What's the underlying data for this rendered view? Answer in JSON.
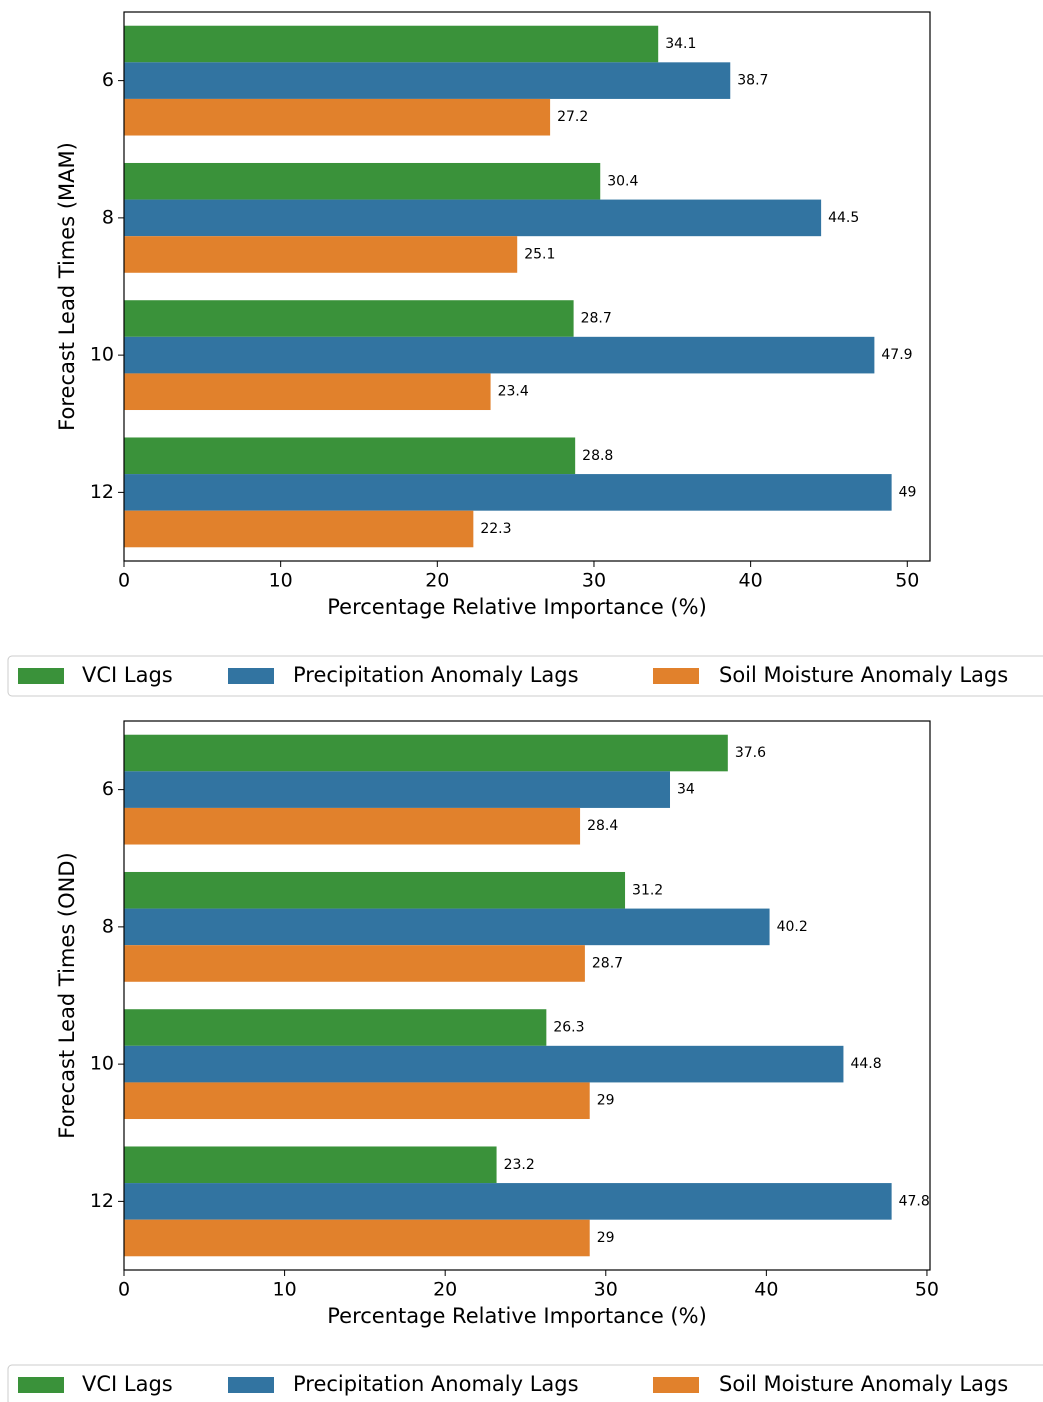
{
  "chart_data": [
    {
      "type": "barh",
      "ylabel": "Forecast Lead Times (MAM)",
      "xlabel": "Percentage Relative Importance (%)",
      "categories": [
        "6",
        "8",
        "10",
        "12"
      ],
      "xlim": [
        0,
        51.45
      ],
      "xticks": [
        0,
        10,
        20,
        30,
        40,
        50
      ],
      "series": [
        {
          "name": "VCI Lags",
          "color": "#3a923a",
          "values": [
            34.1,
            30.4,
            28.7,
            28.8
          ]
        },
        {
          "name": "Precipitation Anomaly Lags",
          "color": "#3274a1",
          "values": [
            38.7,
            44.5,
            47.9,
            49
          ]
        },
        {
          "name": "Soil Moisture Anomaly Lags",
          "color": "#e1812c",
          "values": [
            27.2,
            25.1,
            23.4,
            22.3
          ]
        }
      ]
    },
    {
      "type": "barh",
      "ylabel": "Forecast Lead Times (OND)",
      "xlabel": "Percentage Relative Importance (%)",
      "categories": [
        "6",
        "8",
        "10",
        "12"
      ],
      "xlim": [
        0,
        50.19
      ],
      "xticks": [
        0,
        10,
        20,
        30,
        40,
        50
      ],
      "series": [
        {
          "name": "VCI Lags",
          "color": "#3a923a",
          "values": [
            37.6,
            31.2,
            26.3,
            23.2
          ]
        },
        {
          "name": "Precipitation Anomaly Lags",
          "color": "#3274a1",
          "values": [
            34,
            40.2,
            44.8,
            47.8
          ]
        },
        {
          "name": "Soil Moisture Anomaly Lags",
          "color": "#e1812c",
          "values": [
            28.4,
            28.7,
            29,
            29
          ]
        }
      ]
    }
  ]
}
